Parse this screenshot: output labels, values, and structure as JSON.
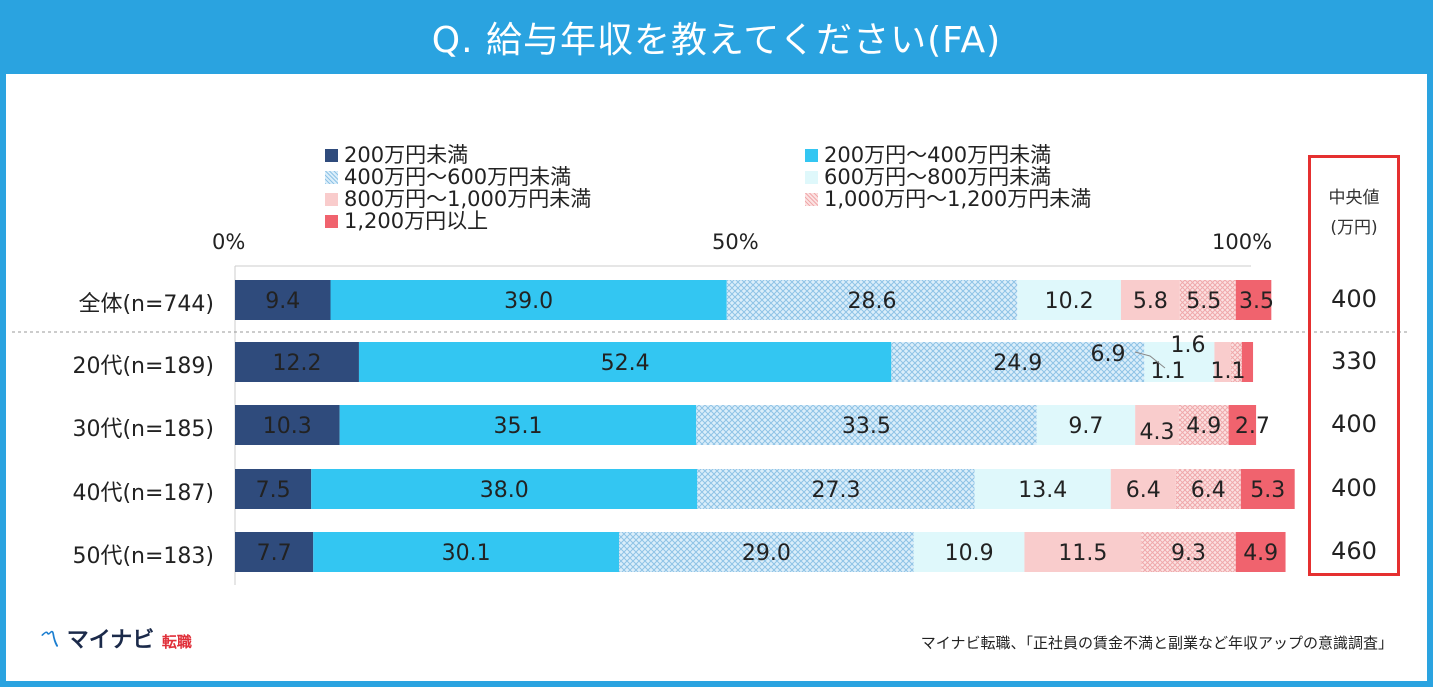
{
  "title": "Q. 給与年収を教えてください(FA)",
  "legend": [
    {
      "label": "200万円未満",
      "color": "#2f4b7c",
      "pattern": "solid"
    },
    {
      "label": "200万円～400万円未満",
      "color": "#33c6f2",
      "pattern": "solid"
    },
    {
      "label": "400万円～600万円未満",
      "color": "#b9d9ef",
      "pattern": "hatch"
    },
    {
      "label": "600万円～800万円未満",
      "color": "#dff8fb",
      "pattern": "solid"
    },
    {
      "label": "800万円～1,000万円未満",
      "color": "#f9cccc",
      "pattern": "solid"
    },
    {
      "label": "1,000万円～1,200万円未満",
      "color": "#f7cfcf",
      "pattern": "dots"
    },
    {
      "label": "1,200万円以上",
      "color": "#f0636e",
      "pattern": "solid"
    }
  ],
  "axis": {
    "t0": "0%",
    "t50": "50%",
    "t100": "100%"
  },
  "median": {
    "header1": "中央値",
    "header2": "(万円)"
  },
  "chart_data": {
    "type": "bar",
    "orientation": "horizontal-stacked-100",
    "title": "Q. 給与年収を教えてください(FA)",
    "xlim": [
      0,
      100
    ],
    "categories": [
      "全体(n=744)",
      "20代(n=189)",
      "30代(n=185)",
      "40代(n=187)",
      "50代(n=183)"
    ],
    "series": [
      {
        "name": "200万円未満",
        "values": [
          9.4,
          12.2,
          10.3,
          7.5,
          7.7
        ]
      },
      {
        "name": "200万円～400万円未満",
        "values": [
          39.0,
          52.4,
          35.1,
          38.0,
          30.1
        ]
      },
      {
        "name": "400万円～600万円未満",
        "values": [
          28.6,
          24.9,
          33.5,
          27.3,
          29.0
        ]
      },
      {
        "name": "600万円～800万円未満",
        "values": [
          10.2,
          6.9,
          9.7,
          13.4,
          10.9
        ]
      },
      {
        "name": "800万円～1,000万円未満",
        "values": [
          5.8,
          1.6,
          4.3,
          6.4,
          11.5
        ]
      },
      {
        "name": "1,000万円～1,200万円未満",
        "values": [
          5.5,
          1.1,
          4.9,
          6.4,
          9.3
        ]
      },
      {
        "name": "1,200万円以上",
        "values": [
          3.5,
          1.1,
          2.7,
          5.3,
          4.9
        ]
      }
    ],
    "value_labels": [
      [
        "9.4",
        "39.0",
        "28.6",
        "10.2",
        "5.8",
        "5.5",
        "3.5"
      ],
      [
        "12.2",
        "52.4",
        "24.9",
        "6.9",
        "1.6",
        "1.1",
        "1.1"
      ],
      [
        "10.3",
        "35.1",
        "33.5",
        "9.7",
        "4.3",
        "4.9",
        "2.7"
      ],
      [
        "7.5",
        "38.0",
        "27.3",
        "13.4",
        "6.4",
        "6.4",
        "5.3"
      ],
      [
        "7.7",
        "30.1",
        "29.0",
        "10.9",
        "11.5",
        "9.3",
        "4.9"
      ]
    ],
    "medians": [
      "400",
      "330",
      "400",
      "400",
      "460"
    ]
  },
  "brand": {
    "name": "マイナビ",
    "sub": "転職"
  },
  "source": "マイナビ転職、「正社員の賃金不満と副業など年収アップの意識調査」"
}
